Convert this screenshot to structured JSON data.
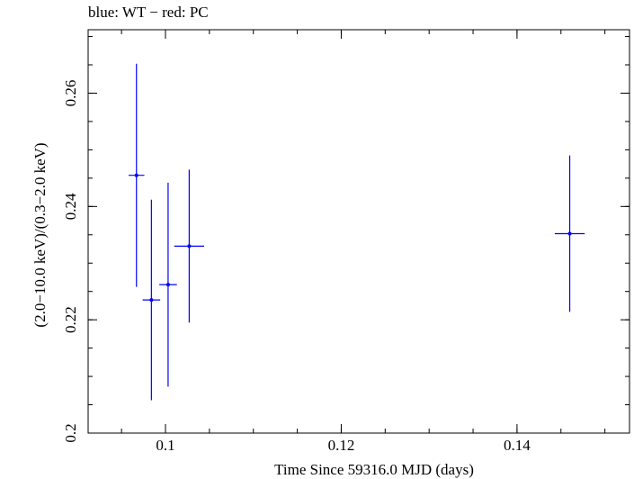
{
  "chart_data": {
    "type": "scatter",
    "title": "blue: WT − red: PC",
    "xlabel": "Time Since 59316.0 MJD (days)",
    "ylabel": "(2.0−10.0 keV)/(0.3−2.0 keV)",
    "xlim": [
      0.0912,
      0.1528
    ],
    "ylim": [
      0.2,
      0.2712
    ],
    "xticks": [
      0.1,
      0.12,
      0.14
    ],
    "xtick_labels": [
      "0.1",
      "0.12",
      "0.14"
    ],
    "yticks": [
      0.2,
      0.22,
      0.24,
      0.26
    ],
    "ytick_labels": [
      "0.2",
      "0.22",
      "0.24",
      "0.26"
    ],
    "series": [
      {
        "name": "WT",
        "color": "#0000ff",
        "points": [
          {
            "x": 0.0967,
            "xerr": 0.0009,
            "y": 0.2455,
            "yerr": 0.0197
          },
          {
            "x": 0.0984,
            "xerr": 0.001,
            "y": 0.2235,
            "yerr": 0.0177
          },
          {
            "x": 0.1003,
            "xerr": 0.001,
            "y": 0.2262,
            "yerr": 0.018
          },
          {
            "x": 0.1027,
            "xerr": 0.0017,
            "y": 0.233,
            "yerr": 0.0135
          },
          {
            "x": 0.146,
            "xerr": 0.0017,
            "y": 0.2352,
            "yerr": 0.0138
          }
        ]
      }
    ]
  }
}
